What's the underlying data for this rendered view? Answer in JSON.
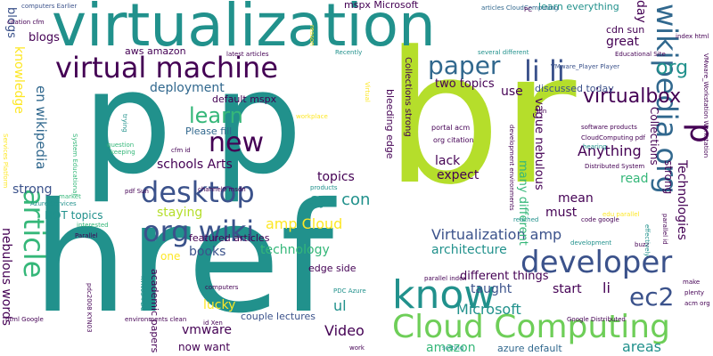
{
  "colors": {
    "background": "#ffffff",
    "dark_purple": "#440154",
    "indigo": "#3b528b",
    "blue": "#31688e",
    "teal": "#21918c",
    "green": "#35b779",
    "light_green": "#6ece58",
    "lime": "#b5de2b",
    "yellow": "#fde725"
  },
  "words": {
    "p1": "p",
    "p2": "p",
    "p3": "p",
    "br": "br",
    "href": "href",
    "virtualization": "virtualization",
    "wikipedia_org": "wikipedia org",
    "virtual_machine": "virtual machine",
    "org_wiki": "org wiki",
    "desktop": "desktop",
    "new": "new",
    "know": "know",
    "cloud_computing": "Cloud Computing",
    "developer": "developer",
    "article": "article",
    "li_li": "li li",
    "paper": "paper",
    "ec2": "ec2",
    "learn": "learn",
    "virtualbox": "virtualbox",
    "org": "org",
    "blogs": "blogs",
    "knowledge": "knowledge",
    "en_wikipedia": "en wikipedia",
    "nebulous_words": "nebulous words",
    "strong1": "strong",
    "sys_con": "sys con",
    "amp_cloud": "amp Cloud",
    "virtualization_amp": "Virtualization amp",
    "architecture": "architecture",
    "microsoft": "Microsoft",
    "vmware": "vmware",
    "books": "books",
    "technology": "technology",
    "schools_arts": "schools Arts",
    "topics": "topics",
    "staying": "staying",
    "hot_topics": "HOT topics",
    "featured_articles": "featured articles",
    "lucky": "lucky",
    "ul": "ul",
    "video": "Video",
    "amazon": "amazon",
    "azure_default": "azure default",
    "areas": "areas",
    "li2": "li",
    "start": "start",
    "taught": "taught",
    "must": "must",
    "mean": "mean",
    "read": "read",
    "expect": "expect",
    "lack": "lack",
    "anything": "Anything",
    "great": "great",
    "use": "use",
    "two_topics": "two topics",
    "deployment": "deployment",
    "discussed_today": "discussed today",
    "aws_amazon": "aws amazon",
    "default_mspx": "default mspx",
    "please_fill": "Please fill",
    "learn_everything": "learn everything",
    "cdn_sun": "cdn sun",
    "mspx_microsoft": "mspx Microsoft",
    "day": "day",
    "technologies": "Technologies",
    "strong2": "strong",
    "collections": "Collections",
    "collections_strong": "Collections strong",
    "vague_nebulous": "vague nebulous",
    "many_different": "many different",
    "bleeding_edge": "bleeding edge",
    "edge_side": "edge side",
    "couple_lectures": "couple lectures",
    "now_want": "now want",
    "one": "one",
    "academic_papers": "academic papers",
    "different_things": "different things",
    "parallel_index": "parallel index",
    "computers_earlier": "computers Earlier",
    "citation_cfm": "citation cfm",
    "articles_cloudcomputing": "articles CloudComputing",
    "latest_articles": "latest articles",
    "cfm_id": "cfm id",
    "channel9_msdn": "channel9 msdn",
    "portal_acm": "portal acm",
    "org_citation": "org citation",
    "cloudcomputing_pdf": "CloudComputing pdf",
    "distributed_system": "Distributed System",
    "software_products": "software products",
    "educational_site": "Educational Site",
    "vmware_player": "VMware_Player Player",
    "index_html": "index html",
    "several_different": "several different",
    "pc": "PC",
    "recently": "Recently",
    "reason": "reason",
    "pdc_azure": "PDC Azure",
    "google_distributed": "Google Distributed",
    "html_google": "html Google",
    "computers": "computers",
    "id_xen": "id Xen",
    "environments_clean": "environments clean",
    "azure_services": "Azure Services",
    "pdf_sun": "pdf Sun",
    "parallel": "Parallel",
    "interested": "interested",
    "keeping": "keeping",
    "question": "question",
    "market": "market",
    "work": "work",
    "setting": "setting",
    "reached": "reached",
    "development": "development",
    "plenty": "plenty",
    "acm_org": "acm org",
    "make": "make",
    "code_google": "code google",
    "buzz": "buzz",
    "products": "products",
    "edu_parallel": "edu parallel",
    "sun": "Sun",
    "hearing": "hearing",
    "workplace": "workplace",
    "system_educational": "System Educational",
    "services_platform": "Services Platform",
    "trying": "trying",
    "virtual": "Virtual",
    "vmware_workstation": "VMware_Workstation Workstation",
    "parallel_id": "parallel id",
    "effectively": "effectively",
    "kyn03_pdc": "KYN03 PDC",
    "pdc2008_kyn03": "pdc2008 KYN03",
    "development_environments": "development environments"
  }
}
